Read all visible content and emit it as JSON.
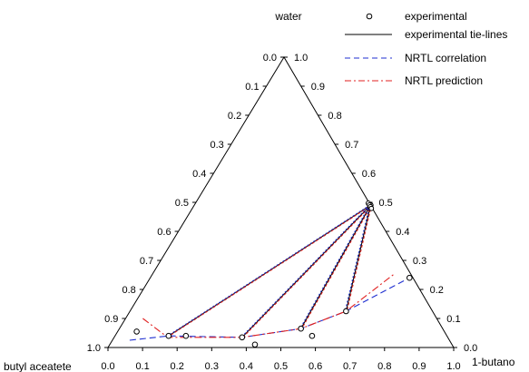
{
  "chart_data": {
    "type": "scatter",
    "subtype": "ternary",
    "vertex_labels": {
      "top": "water",
      "bottom_left": "butyl aceatete",
      "bottom_right": "1-butano"
    },
    "axis_ticks": [
      "0.0",
      "0.1",
      "0.2",
      "0.3",
      "0.4",
      "0.5",
      "0.6",
      "0.7",
      "0.8",
      "0.9",
      "1.0"
    ],
    "legend": [
      {
        "label": "experimental",
        "style": "open-circle",
        "color": "#000000"
      },
      {
        "label": "experimental tie-lines",
        "style": "solid-line",
        "color": "#000000"
      },
      {
        "label": "NRTL correlation",
        "style": "dashed-line",
        "color": "#1f2fd0"
      },
      {
        "label": "NRTL prediction",
        "style": "dash-dot-line",
        "color": "#e02020"
      }
    ],
    "legend_position": "top-right",
    "coordinate_note": "points given as bottom-axis value (1-butanol fraction) and left-axis value (butyl acetate fraction)",
    "experimental_points": [
      {
        "b": 0.055,
        "a": 0.89
      },
      {
        "b": 0.205,
        "a": 0.755
      },
      {
        "b": 0.42,
        "a": 0.57
      },
      {
        "b": 0.57,
        "a": 0.39
      },
      {
        "b": 0.75,
        "a": 0.01
      },
      {
        "b": 0.51,
        "a": 0.0
      }
    ],
    "tie_lines": [
      {
        "raffinate": {
          "b": 0.51,
          "a": 0.0
        },
        "extract": {
          "b": 0.155,
          "a": 0.805
        }
      },
      {
        "raffinate": {
          "b": 0.51,
          "a": 0.0
        },
        "extract": {
          "b": 0.37,
          "a": 0.595
        }
      },
      {
        "raffinate": {
          "b": 0.51,
          "a": 0.0
        },
        "extract": {
          "b": 0.525,
          "a": 0.41
        }
      },
      {
        "raffinate": {
          "b": 0.51,
          "a": 0.0
        },
        "extract": {
          "b": 0.625,
          "a": 0.25
        }
      }
    ],
    "series": [
      {
        "name": "NRTL correlation",
        "points": [
          {
            "b": 0.05,
            "a": 0.925
          },
          {
            "b": 0.155,
            "a": 0.805
          },
          {
            "b": 0.37,
            "a": 0.595
          },
          {
            "b": 0.525,
            "a": 0.41
          },
          {
            "b": 0.625,
            "a": 0.25
          },
          {
            "b": 0.75,
            "a": 0.01
          }
        ]
      },
      {
        "name": "NRTL prediction",
        "points": [
          {
            "b": 0.05,
            "a": 0.85
          },
          {
            "b": 0.155,
            "a": 0.81
          },
          {
            "b": 0.37,
            "a": 0.595
          },
          {
            "b": 0.525,
            "a": 0.41
          },
          {
            "b": 0.625,
            "a": 0.25
          },
          {
            "b": 0.7,
            "a": 0.045
          }
        ]
      }
    ]
  }
}
